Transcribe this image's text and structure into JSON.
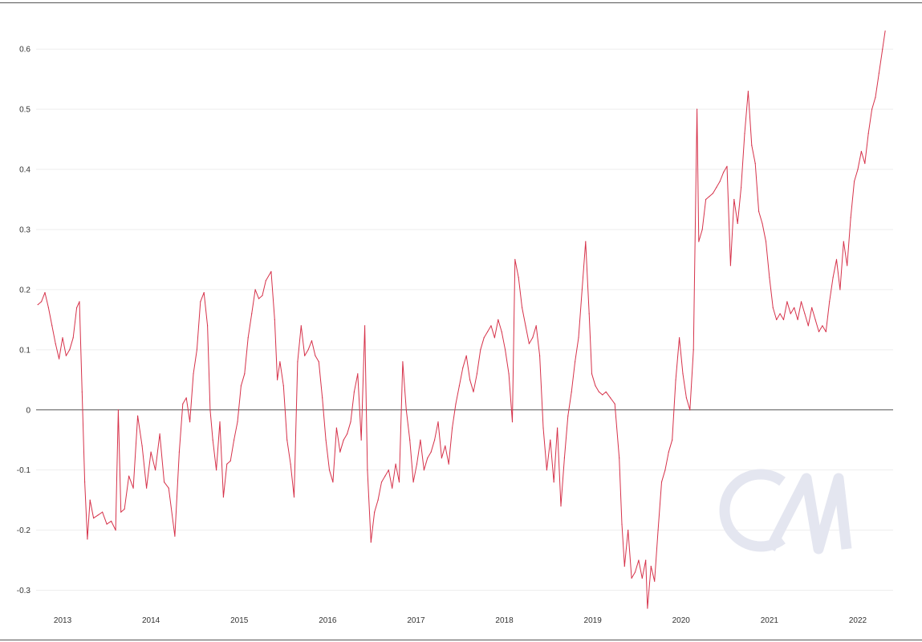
{
  "colors": {
    "series": "#d6324a",
    "zero_line": "#555555",
    "grid": "#eeeeee",
    "border": "#555555",
    "watermark": "#e4e6f0",
    "tick_text": "#333333"
  },
  "watermark": {
    "text": "CM"
  },
  "chart_data": {
    "type": "line",
    "title": "",
    "xlabel": "",
    "ylabel": "",
    "grid": "horizontal",
    "legend": "none",
    "xlim": [
      2012.7,
      2022.4
    ],
    "ylim": [
      -0.33,
      0.655
    ],
    "x_ticks": [
      {
        "value": 2013,
        "label": "2013"
      },
      {
        "value": 2014,
        "label": "2014"
      },
      {
        "value": 2015,
        "label": "2015"
      },
      {
        "value": 2016,
        "label": "2016"
      },
      {
        "value": 2017,
        "label": "2017"
      },
      {
        "value": 2018,
        "label": "2018"
      },
      {
        "value": 2019,
        "label": "2019"
      },
      {
        "value": 2020,
        "label": "2020"
      },
      {
        "value": 2021,
        "label": "2021"
      },
      {
        "value": 2022,
        "label": "2022"
      }
    ],
    "y_ticks": [
      {
        "value": 0.6,
        "label": "0.6"
      },
      {
        "value": 0.5,
        "label": "0.5"
      },
      {
        "value": 0.4,
        "label": "0.4"
      },
      {
        "value": 0.3,
        "label": "0.3"
      },
      {
        "value": 0.2,
        "label": "0.2"
      },
      {
        "value": 0.1,
        "label": "0.1"
      },
      {
        "value": 0,
        "label": "0"
      },
      {
        "value": -0.1,
        "label": "-0.1"
      },
      {
        "value": -0.2,
        "label": "-0.2"
      },
      {
        "value": -0.3,
        "label": "-0.3"
      }
    ],
    "series": [
      {
        "values": [
          [
            2012.72,
            0.175
          ],
          [
            2012.76,
            0.18
          ],
          [
            2012.8,
            0.195
          ],
          [
            2012.84,
            0.17
          ],
          [
            2012.88,
            0.14
          ],
          [
            2012.92,
            0.11
          ],
          [
            2012.96,
            0.085
          ],
          [
            2013.0,
            0.12
          ],
          [
            2013.04,
            0.09
          ],
          [
            2013.08,
            0.1
          ],
          [
            2013.12,
            0.12
          ],
          [
            2013.16,
            0.17
          ],
          [
            2013.19,
            0.18
          ],
          [
            2013.22,
            0.03
          ],
          [
            2013.25,
            -0.12
          ],
          [
            2013.28,
            -0.215
          ],
          [
            2013.31,
            -0.15
          ],
          [
            2013.35,
            -0.18
          ],
          [
            2013.4,
            -0.175
          ],
          [
            2013.45,
            -0.17
          ],
          [
            2013.5,
            -0.19
          ],
          [
            2013.55,
            -0.185
          ],
          [
            2013.6,
            -0.2
          ],
          [
            2013.63,
            0.0
          ],
          [
            2013.66,
            -0.17
          ],
          [
            2013.7,
            -0.165
          ],
          [
            2013.75,
            -0.11
          ],
          [
            2013.8,
            -0.13
          ],
          [
            2013.85,
            -0.01
          ],
          [
            2013.9,
            -0.06
          ],
          [
            2013.95,
            -0.13
          ],
          [
            2014.0,
            -0.07
          ],
          [
            2014.05,
            -0.1
          ],
          [
            2014.1,
            -0.04
          ],
          [
            2014.15,
            -0.12
          ],
          [
            2014.2,
            -0.13
          ],
          [
            2014.27,
            -0.21
          ],
          [
            2014.32,
            -0.07
          ],
          [
            2014.36,
            0.01
          ],
          [
            2014.4,
            0.02
          ],
          [
            2014.44,
            -0.02
          ],
          [
            2014.48,
            0.06
          ],
          [
            2014.52,
            0.1
          ],
          [
            2014.56,
            0.18
          ],
          [
            2014.6,
            0.195
          ],
          [
            2014.64,
            0.14
          ],
          [
            2014.67,
            0.0
          ],
          [
            2014.7,
            -0.05
          ],
          [
            2014.74,
            -0.1
          ],
          [
            2014.78,
            -0.02
          ],
          [
            2014.82,
            -0.145
          ],
          [
            2014.86,
            -0.09
          ],
          [
            2014.9,
            -0.085
          ],
          [
            2014.94,
            -0.05
          ],
          [
            2014.98,
            -0.02
          ],
          [
            2015.02,
            0.04
          ],
          [
            2015.06,
            0.06
          ],
          [
            2015.1,
            0.12
          ],
          [
            2015.14,
            0.16
          ],
          [
            2015.18,
            0.2
          ],
          [
            2015.22,
            0.185
          ],
          [
            2015.26,
            0.19
          ],
          [
            2015.3,
            0.215
          ],
          [
            2015.36,
            0.23
          ],
          [
            2015.4,
            0.15
          ],
          [
            2015.43,
            0.05
          ],
          [
            2015.46,
            0.08
          ],
          [
            2015.5,
            0.04
          ],
          [
            2015.54,
            -0.05
          ],
          [
            2015.58,
            -0.09
          ],
          [
            2015.62,
            -0.145
          ],
          [
            2015.66,
            0.08
          ],
          [
            2015.7,
            0.14
          ],
          [
            2015.74,
            0.09
          ],
          [
            2015.78,
            0.1
          ],
          [
            2015.82,
            0.115
          ],
          [
            2015.86,
            0.09
          ],
          [
            2015.9,
            0.08
          ],
          [
            2015.94,
            0.02
          ],
          [
            2015.98,
            -0.05
          ],
          [
            2016.02,
            -0.1
          ],
          [
            2016.06,
            -0.12
          ],
          [
            2016.1,
            -0.03
          ],
          [
            2016.14,
            -0.07
          ],
          [
            2016.18,
            -0.05
          ],
          [
            2016.22,
            -0.04
          ],
          [
            2016.26,
            -0.02
          ],
          [
            2016.3,
            0.03
          ],
          [
            2016.34,
            0.06
          ],
          [
            2016.38,
            -0.05
          ],
          [
            2016.42,
            0.14
          ],
          [
            2016.45,
            -0.1
          ],
          [
            2016.49,
            -0.22
          ],
          [
            2016.53,
            -0.17
          ],
          [
            2016.57,
            -0.15
          ],
          [
            2016.61,
            -0.12
          ],
          [
            2016.65,
            -0.11
          ],
          [
            2016.69,
            -0.1
          ],
          [
            2016.73,
            -0.13
          ],
          [
            2016.77,
            -0.09
          ],
          [
            2016.81,
            -0.12
          ],
          [
            2016.85,
            0.08
          ],
          [
            2016.89,
            0.0
          ],
          [
            2016.93,
            -0.05
          ],
          [
            2016.97,
            -0.12
          ],
          [
            2017.01,
            -0.09
          ],
          [
            2017.05,
            -0.05
          ],
          [
            2017.09,
            -0.1
          ],
          [
            2017.13,
            -0.08
          ],
          [
            2017.17,
            -0.07
          ],
          [
            2017.21,
            -0.05
          ],
          [
            2017.25,
            -0.02
          ],
          [
            2017.29,
            -0.08
          ],
          [
            2017.33,
            -0.06
          ],
          [
            2017.37,
            -0.09
          ],
          [
            2017.41,
            -0.03
          ],
          [
            2017.45,
            0.01
          ],
          [
            2017.49,
            0.04
          ],
          [
            2017.53,
            0.07
          ],
          [
            2017.57,
            0.09
          ],
          [
            2017.61,
            0.05
          ],
          [
            2017.65,
            0.03
          ],
          [
            2017.69,
            0.06
          ],
          [
            2017.73,
            0.1
          ],
          [
            2017.77,
            0.12
          ],
          [
            2017.81,
            0.13
          ],
          [
            2017.85,
            0.14
          ],
          [
            2017.89,
            0.12
          ],
          [
            2017.93,
            0.15
          ],
          [
            2017.97,
            0.13
          ],
          [
            2018.01,
            0.1
          ],
          [
            2018.05,
            0.06
          ],
          [
            2018.09,
            -0.02
          ],
          [
            2018.12,
            0.25
          ],
          [
            2018.16,
            0.22
          ],
          [
            2018.2,
            0.17
          ],
          [
            2018.24,
            0.14
          ],
          [
            2018.28,
            0.11
          ],
          [
            2018.32,
            0.12
          ],
          [
            2018.36,
            0.14
          ],
          [
            2018.4,
            0.09
          ],
          [
            2018.44,
            -0.03
          ],
          [
            2018.48,
            -0.1
          ],
          [
            2018.52,
            -0.05
          ],
          [
            2018.56,
            -0.12
          ],
          [
            2018.6,
            -0.03
          ],
          [
            2018.64,
            -0.16
          ],
          [
            2018.68,
            -0.08
          ],
          [
            2018.72,
            -0.01
          ],
          [
            2018.76,
            0.03
          ],
          [
            2018.8,
            0.08
          ],
          [
            2018.84,
            0.12
          ],
          [
            2018.88,
            0.2
          ],
          [
            2018.92,
            0.28
          ],
          [
            2018.96,
            0.16
          ],
          [
            2018.99,
            0.06
          ],
          [
            2019.03,
            0.04
          ],
          [
            2019.07,
            0.03
          ],
          [
            2019.11,
            0.025
          ],
          [
            2019.15,
            0.03
          ],
          [
            2019.2,
            0.02
          ],
          [
            2019.25,
            0.01
          ],
          [
            2019.3,
            -0.08
          ],
          [
            2019.33,
            -0.19
          ],
          [
            2019.36,
            -0.26
          ],
          [
            2019.4,
            -0.2
          ],
          [
            2019.44,
            -0.28
          ],
          [
            2019.48,
            -0.27
          ],
          [
            2019.52,
            -0.25
          ],
          [
            2019.56,
            -0.28
          ],
          [
            2019.6,
            -0.25
          ],
          [
            2019.62,
            -0.33
          ],
          [
            2019.66,
            -0.26
          ],
          [
            2019.7,
            -0.285
          ],
          [
            2019.74,
            -0.2
          ],
          [
            2019.78,
            -0.12
          ],
          [
            2019.82,
            -0.1
          ],
          [
            2019.86,
            -0.07
          ],
          [
            2019.9,
            -0.05
          ],
          [
            2019.94,
            0.05
          ],
          [
            2019.98,
            0.12
          ],
          [
            2020.02,
            0.06
          ],
          [
            2020.06,
            0.02
          ],
          [
            2020.1,
            0.0
          ],
          [
            2020.14,
            0.1
          ],
          [
            2020.18,
            0.5
          ],
          [
            2020.2,
            0.28
          ],
          [
            2020.24,
            0.3
          ],
          [
            2020.28,
            0.35
          ],
          [
            2020.32,
            0.355
          ],
          [
            2020.36,
            0.36
          ],
          [
            2020.4,
            0.37
          ],
          [
            2020.44,
            0.38
          ],
          [
            2020.48,
            0.395
          ],
          [
            2020.52,
            0.405
          ],
          [
            2020.56,
            0.24
          ],
          [
            2020.6,
            0.35
          ],
          [
            2020.64,
            0.31
          ],
          [
            2020.68,
            0.37
          ],
          [
            2020.72,
            0.46
          ],
          [
            2020.76,
            0.53
          ],
          [
            2020.8,
            0.44
          ],
          [
            2020.84,
            0.41
          ],
          [
            2020.88,
            0.33
          ],
          [
            2020.92,
            0.31
          ],
          [
            2020.96,
            0.28
          ],
          [
            2021.0,
            0.22
          ],
          [
            2021.04,
            0.17
          ],
          [
            2021.08,
            0.15
          ],
          [
            2021.12,
            0.16
          ],
          [
            2021.16,
            0.15
          ],
          [
            2021.2,
            0.18
          ],
          [
            2021.24,
            0.16
          ],
          [
            2021.28,
            0.17
          ],
          [
            2021.32,
            0.15
          ],
          [
            2021.36,
            0.18
          ],
          [
            2021.4,
            0.16
          ],
          [
            2021.44,
            0.14
          ],
          [
            2021.48,
            0.17
          ],
          [
            2021.52,
            0.15
          ],
          [
            2021.56,
            0.13
          ],
          [
            2021.6,
            0.14
          ],
          [
            2021.64,
            0.13
          ],
          [
            2021.68,
            0.18
          ],
          [
            2021.72,
            0.22
          ],
          [
            2021.76,
            0.25
          ],
          [
            2021.8,
            0.2
          ],
          [
            2021.84,
            0.28
          ],
          [
            2021.88,
            0.24
          ],
          [
            2021.92,
            0.32
          ],
          [
            2021.96,
            0.38
          ],
          [
            2022.0,
            0.4
          ],
          [
            2022.04,
            0.43
          ],
          [
            2022.08,
            0.41
          ],
          [
            2022.12,
            0.46
          ],
          [
            2022.16,
            0.5
          ],
          [
            2022.2,
            0.52
          ],
          [
            2022.24,
            0.56
          ],
          [
            2022.28,
            0.6
          ],
          [
            2022.31,
            0.63
          ]
        ]
      }
    ]
  }
}
